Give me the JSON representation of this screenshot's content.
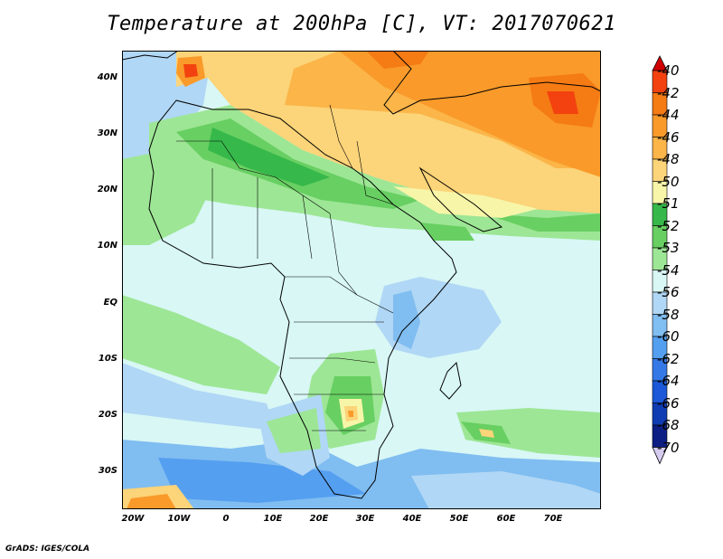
{
  "title": "Temperature at 200hPa [C], VT: 2017070621",
  "credit": "GrADS: IGES/COLA",
  "lat_ticks": [
    "40N",
    "30N",
    "20N",
    "10N",
    "EQ",
    "10S",
    "20S",
    "30S"
  ],
  "lon_ticks": [
    "20W",
    "10W",
    "0",
    "10E",
    "20E",
    "30E",
    "40E",
    "50E",
    "60E",
    "70E"
  ],
  "colorbar": {
    "labels": [
      "-40",
      "-42",
      "-44",
      "-46",
      "-48",
      "-50",
      "-51",
      "-52",
      "-53",
      "-54",
      "-56",
      "-58",
      "-60",
      "-62",
      "-64",
      "-66",
      "-68",
      "-70"
    ],
    "colors": [
      "#e60000",
      "#f3420f",
      "#f57b15",
      "#f99a2a",
      "#fbb548",
      "#fcd479",
      "#f7f5a8",
      "#36b84a",
      "#68cf62",
      "#9de695",
      "#d8f7f5",
      "#b0d7f5",
      "#80bdf1",
      "#559ff0",
      "#3579e6",
      "#1c58d7",
      "#0f3cb3",
      "#0c1e84"
    ],
    "top_cap_color": "#d10000",
    "bottom_cap_color": "#d6ccf0"
  },
  "map": {
    "colors": {
      "green_dark": "#36b84a",
      "green_mid": "#68cf62",
      "green_light": "#9de695",
      "pale": "#d8f7f5",
      "blue_light": "#b0d7f5",
      "blue_mid": "#80bdf1",
      "yellow": "#fcd479",
      "orange_light": "#fbb548",
      "orange": "#f99a2a",
      "orange_dark": "#f57b15",
      "red": "#f3420f",
      "pale_yellow": "#f7f5a8",
      "border": "#000000"
    }
  }
}
